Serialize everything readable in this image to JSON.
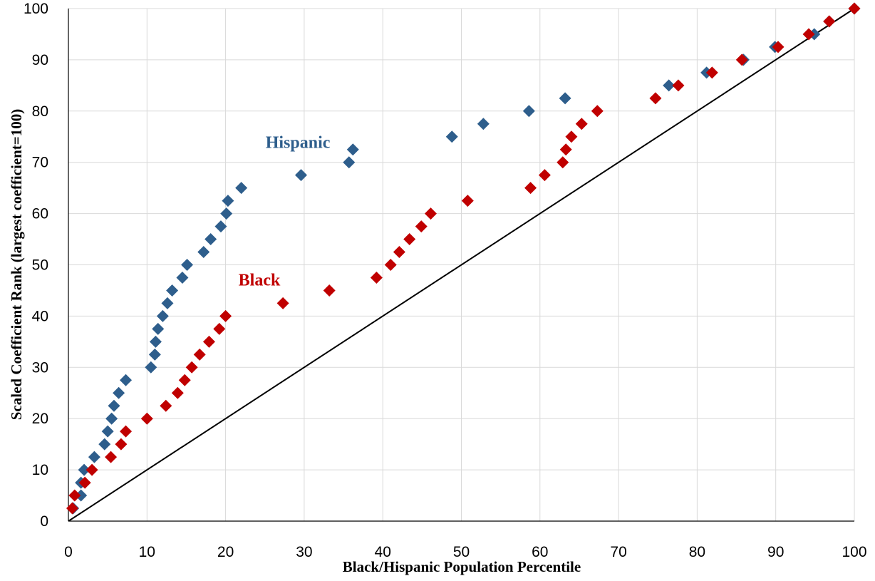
{
  "chart_data": {
    "type": "scatter",
    "title": "",
    "xlabel": "Black/Hispanic Population Percentile",
    "ylabel": "Scaled Coefficient Rank (largest coefficient=100)",
    "xlim": [
      0,
      100
    ],
    "ylim": [
      0,
      100
    ],
    "x_ticks": [
      0,
      10,
      20,
      30,
      40,
      50,
      60,
      70,
      80,
      90,
      100
    ],
    "y_ticks": [
      0,
      10,
      20,
      30,
      40,
      50,
      60,
      70,
      80,
      90,
      100
    ],
    "grid": "vertical and horizontal major gridlines",
    "reference_line": {
      "x": [
        0,
        100
      ],
      "y": [
        0,
        100
      ],
      "color": "#000000"
    },
    "series": [
      {
        "name": "Hispanic",
        "color": "#2e5e8c",
        "marker": "diamond",
        "points": [
          [
            0.6,
            2.5
          ],
          [
            1.6,
            5.0
          ],
          [
            1.6,
            7.5
          ],
          [
            2.0,
            10.0
          ],
          [
            3.3,
            12.5
          ],
          [
            4.6,
            15.0
          ],
          [
            5.0,
            17.5
          ],
          [
            5.5,
            20.0
          ],
          [
            5.8,
            22.5
          ],
          [
            6.4,
            25.0
          ],
          [
            7.3,
            27.5
          ],
          [
            10.5,
            30.0
          ],
          [
            11.0,
            32.5
          ],
          [
            11.1,
            35.0
          ],
          [
            11.4,
            37.5
          ],
          [
            12.0,
            40.0
          ],
          [
            12.6,
            42.5
          ],
          [
            13.2,
            45.0
          ],
          [
            14.5,
            47.5
          ],
          [
            15.1,
            50.0
          ],
          [
            17.2,
            52.5
          ],
          [
            18.1,
            55.0
          ],
          [
            19.4,
            57.5
          ],
          [
            20.1,
            60.0
          ],
          [
            20.3,
            62.5
          ],
          [
            22.0,
            65.0
          ],
          [
            29.6,
            67.5
          ],
          [
            35.7,
            70.0
          ],
          [
            36.2,
            72.5
          ],
          [
            48.8,
            75.0
          ],
          [
            52.8,
            77.5
          ],
          [
            58.6,
            80.0
          ],
          [
            63.2,
            82.5
          ],
          [
            76.4,
            85.0
          ],
          [
            81.2,
            87.5
          ],
          [
            85.9,
            90.0
          ],
          [
            89.9,
            92.5
          ],
          [
            94.9,
            95.0
          ],
          [
            96.8,
            97.5
          ],
          [
            100.0,
            100.0
          ]
        ]
      },
      {
        "name": "Black",
        "color": "#c00000",
        "marker": "diamond",
        "points": [
          [
            0.5,
            2.5
          ],
          [
            0.8,
            5.0
          ],
          [
            2.1,
            7.5
          ],
          [
            3.0,
            10.0
          ],
          [
            5.4,
            12.5
          ],
          [
            6.7,
            15.0
          ],
          [
            7.3,
            17.5
          ],
          [
            10.0,
            20.0
          ],
          [
            12.4,
            22.5
          ],
          [
            13.9,
            25.0
          ],
          [
            14.8,
            27.5
          ],
          [
            15.7,
            30.0
          ],
          [
            16.7,
            32.5
          ],
          [
            17.9,
            35.0
          ],
          [
            19.2,
            37.5
          ],
          [
            20.0,
            40.0
          ],
          [
            27.3,
            42.5
          ],
          [
            33.2,
            45.0
          ],
          [
            39.2,
            47.5
          ],
          [
            41.0,
            50.0
          ],
          [
            42.1,
            52.5
          ],
          [
            43.4,
            55.0
          ],
          [
            44.9,
            57.5
          ],
          [
            46.1,
            60.0
          ],
          [
            50.8,
            62.5
          ],
          [
            58.8,
            65.0
          ],
          [
            60.6,
            67.5
          ],
          [
            62.9,
            70.0
          ],
          [
            63.3,
            72.5
          ],
          [
            64.0,
            75.0
          ],
          [
            65.3,
            77.5
          ],
          [
            67.3,
            80.0
          ],
          [
            74.7,
            82.5
          ],
          [
            77.6,
            85.0
          ],
          [
            81.9,
            87.5
          ],
          [
            85.7,
            90.0
          ],
          [
            90.3,
            92.5
          ],
          [
            94.2,
            95.0
          ],
          [
            96.8,
            97.5
          ],
          [
            100.0,
            100.0
          ]
        ]
      }
    ],
    "annotations": [
      {
        "text": "Hispanic",
        "series": 0,
        "x": 29.2,
        "y": 72.8
      },
      {
        "text": "Black",
        "series": 1,
        "x": 24.3,
        "y": 46.0
      }
    ]
  }
}
